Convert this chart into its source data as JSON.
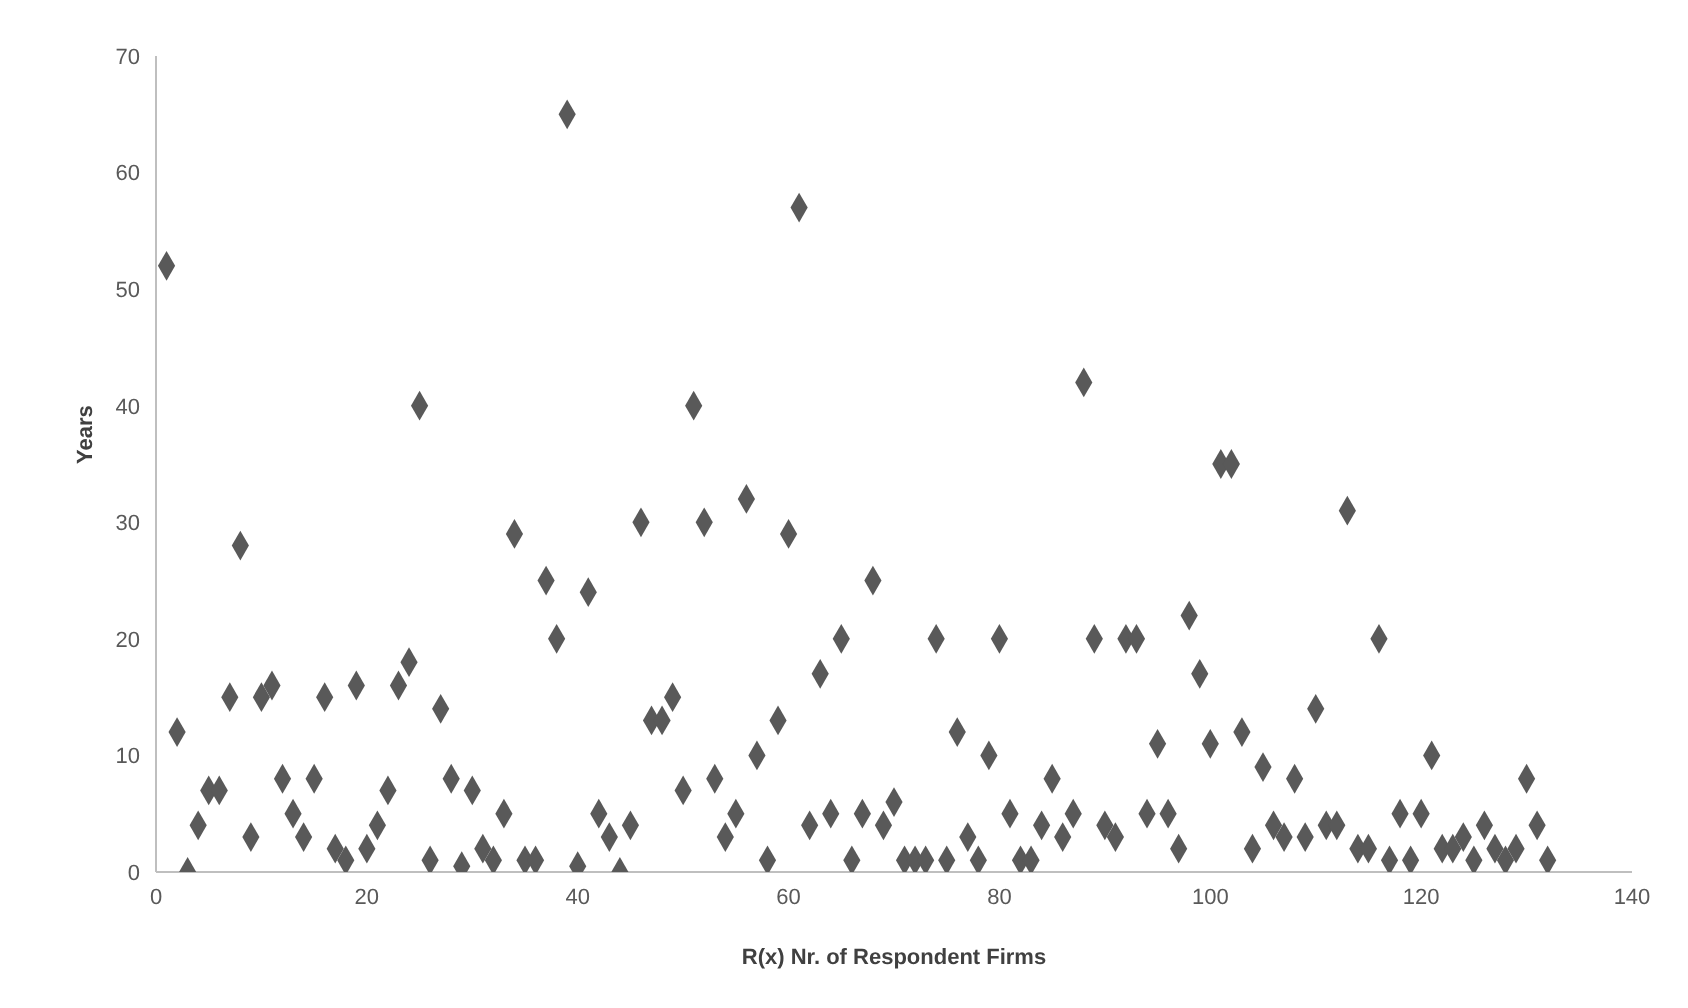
{
  "chart_data": {
    "type": "scatter",
    "xlabel": "R(x) Nr. of Respondent Firms",
    "ylabel": "Years",
    "marker": "diamond",
    "grid": false,
    "legend": false,
    "x": [
      1,
      2,
      3,
      4,
      5,
      6,
      7,
      8,
      9,
      10,
      11,
      12,
      13,
      14,
      15,
      16,
      17,
      18,
      19,
      20,
      21,
      22,
      23,
      24,
      25,
      26,
      27,
      28,
      29,
      30,
      31,
      32,
      33,
      34,
      35,
      36,
      37,
      38,
      39,
      40,
      41,
      42,
      43,
      44,
      45,
      46,
      47,
      48,
      49,
      50,
      51,
      52,
      53,
      54,
      55,
      56,
      57,
      58,
      59,
      60,
      61,
      62,
      63,
      64,
      65,
      66,
      67,
      68,
      69,
      70,
      71,
      72,
      73,
      74,
      75,
      76,
      77,
      78,
      79,
      80,
      81,
      82,
      83,
      84,
      85,
      86,
      87,
      88,
      89,
      90,
      91,
      92,
      93,
      94,
      95,
      96,
      97,
      98,
      99,
      100,
      101,
      102,
      103,
      104,
      105,
      106,
      107,
      108,
      109,
      110,
      111,
      112,
      113,
      114,
      115,
      116,
      117,
      118,
      119,
      120,
      121,
      122,
      123,
      124,
      125,
      126,
      127,
      128,
      129,
      130,
      131,
      132
    ],
    "series": [
      {
        "color": "#595959",
        "values": [
          52,
          12,
          0,
          4,
          7,
          7,
          15,
          28,
          3,
          15,
          16,
          8,
          5,
          3,
          8,
          15,
          2,
          1,
          16,
          2,
          4,
          7,
          16,
          18,
          40,
          1,
          14,
          8,
          0.5,
          7,
          2,
          1,
          5,
          29,
          1,
          1,
          25,
          20,
          65,
          0.5,
          24,
          5,
          3,
          0,
          4,
          30,
          13,
          13,
          15,
          7,
          40,
          30,
          8,
          3,
          5,
          32,
          10,
          1,
          13,
          29,
          57,
          4,
          17,
          5,
          20,
          1,
          5,
          25,
          4,
          6,
          1,
          1,
          1,
          20,
          1,
          12,
          3,
          1,
          10,
          20,
          5,
          1,
          1,
          4,
          8,
          3,
          5,
          42,
          20,
          4,
          3,
          20,
          20,
          5,
          11,
          5,
          2,
          22,
          17,
          11,
          35,
          35,
          12,
          2,
          9,
          4,
          3,
          8,
          3,
          14,
          4,
          4,
          31,
          2,
          2,
          20,
          1,
          5,
          1,
          5,
          10,
          2,
          2,
          3,
          1,
          4,
          2,
          1,
          2,
          8,
          4,
          1
        ]
      }
    ],
    "xlim": [
      0,
      140
    ],
    "xticks": [
      0,
      20,
      40,
      60,
      80,
      100,
      120,
      140
    ],
    "ylim": [
      0,
      70
    ],
    "yticks": [
      0,
      10,
      20,
      30,
      40,
      50,
      60,
      70
    ]
  }
}
